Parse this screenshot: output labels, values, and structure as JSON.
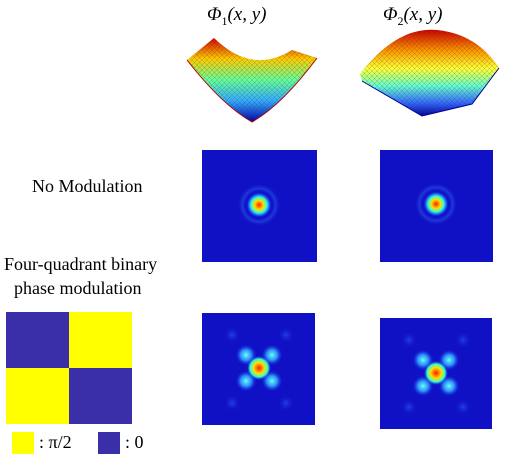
{
  "columns": [
    {
      "symbol": "Φ",
      "subscript": "1",
      "args": "(x, y)"
    },
    {
      "symbol": "Φ",
      "subscript": "2",
      "args": "(x, y)"
    }
  ],
  "rows": {
    "no_modulation": "No Modulation",
    "four_quadrant_line1": "Four-quadrant binary",
    "four_quadrant_line2": "phase modulation"
  },
  "mask": {
    "colors": {
      "yellow": "#ffff00",
      "blue": "#3a2fa8"
    }
  },
  "legend": {
    "yellow_label": ": π/2",
    "blue_label": ": 0"
  }
}
